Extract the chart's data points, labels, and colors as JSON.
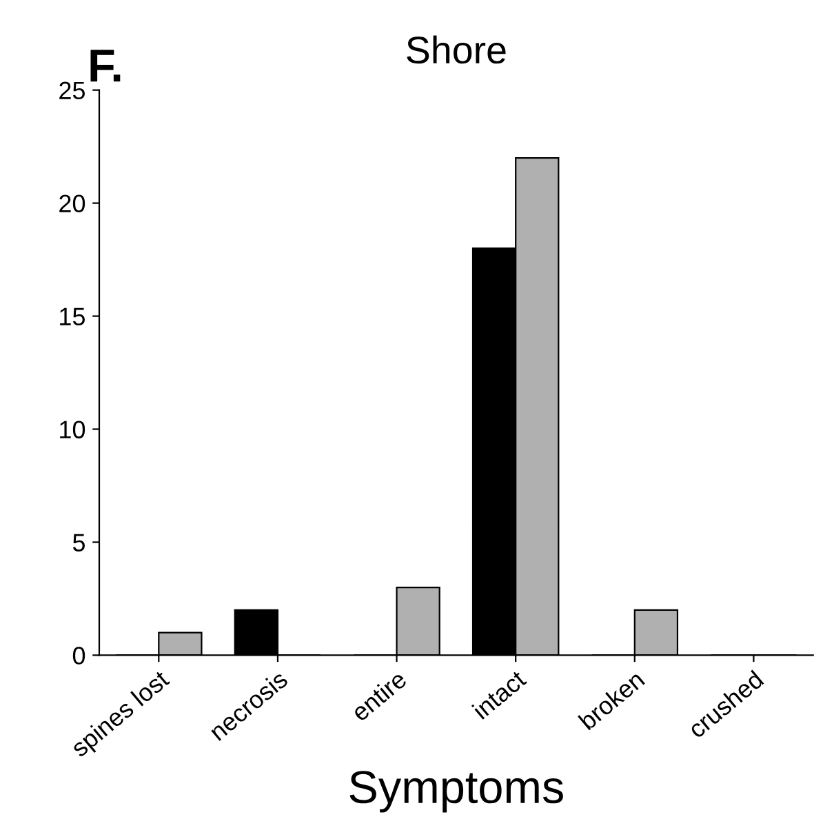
{
  "chart_data": {
    "type": "bar",
    "title": "Shore",
    "xlabel": "Symptoms",
    "annotations": [
      "F."
    ],
    "categories": [
      "spines lost",
      "necrosis",
      "entire",
      "intact",
      "broken",
      "crushed"
    ],
    "series": [
      {
        "color": "#000000",
        "values": [
          0,
          2,
          0,
          18,
          0,
          0
        ]
      },
      {
        "color": "#b0b0b0",
        "values": [
          1,
          0,
          3,
          22,
          2,
          0
        ]
      }
    ],
    "ylim": [
      0,
      25
    ],
    "yticks": [
      0,
      5,
      10,
      15,
      20,
      25
    ],
    "grid": false,
    "legend": false
  }
}
